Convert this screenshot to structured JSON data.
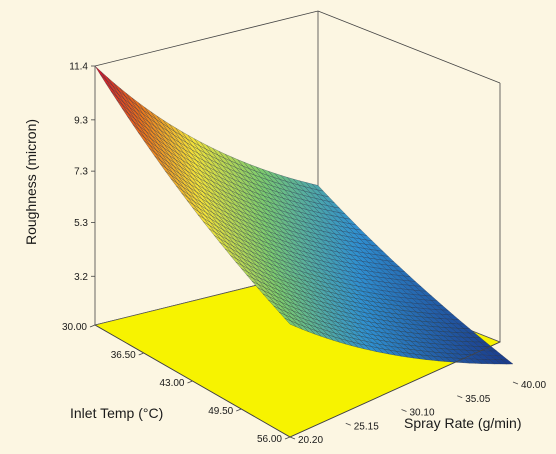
{
  "chart_data": {
    "type": "surface",
    "title": "",
    "xlabel": "Inlet Temp (°C)",
    "ylabel": "Spray Rate (g/min)",
    "zlabel": "Roughness (micron)",
    "x_ticks": [
      "30.00",
      "36.50",
      "43.00",
      "49.50",
      "56.00"
    ],
    "y_ticks": [
      "40.00",
      "35.05",
      "30.10",
      "25.15",
      "20.20"
    ],
    "z_ticks": [
      "3.2",
      "5.3",
      "7.3",
      "9.3",
      "11.4"
    ],
    "x_range": [
      30.0,
      56.0
    ],
    "y_range": [
      20.2,
      40.0
    ],
    "z_range": [
      1.3,
      11.4
    ],
    "surface_corners": [
      {
        "inlet_temp": 30.0,
        "spray_rate": 20.2,
        "roughness": 11.4
      },
      {
        "inlet_temp": 56.0,
        "spray_rate": 20.2,
        "roughness": 5.7
      },
      {
        "inlet_temp": 30.0,
        "spray_rate": 40.0,
        "roughness": 4.6
      },
      {
        "inlet_temp": 56.0,
        "spray_rate": 40.0,
        "roughness": 2.0
      }
    ],
    "colormap": [
      "#1a3a8a",
      "#2f8fd0",
      "#7bc96f",
      "#f2e23a",
      "#e8731c",
      "#c8102e"
    ],
    "floor_color": "#f7f300",
    "background_color": "#fcf6e2"
  }
}
